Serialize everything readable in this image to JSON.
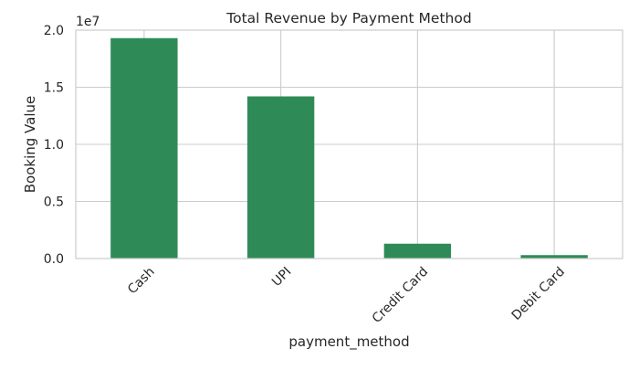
{
  "chart_data": {
    "type": "bar",
    "title": "Total Revenue by Payment Method",
    "xlabel": "payment_method",
    "ylabel": "Booking Value",
    "categories": [
      "Cash",
      "UPI",
      "Credit Card",
      "Debit Card"
    ],
    "values": [
      19300000,
      14200000,
      1300000,
      300000
    ],
    "ylim": [
      0,
      20000000
    ],
    "yticks": [
      0,
      5000000,
      10000000,
      15000000,
      20000000
    ],
    "ytick_labels": [
      "0.0",
      "0.5",
      "1.0",
      "1.5",
      "2.0"
    ],
    "y_offset_label": "1e7",
    "grid": true,
    "legend": "none",
    "bar_color": "#2e8b57",
    "grid_color": "#cccccc"
  }
}
